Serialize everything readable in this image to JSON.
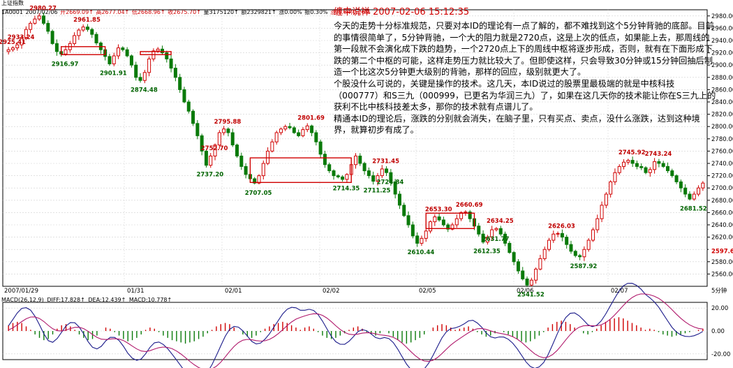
{
  "header": {
    "index_name": "上证指数",
    "quote": {
      "code": "1A0001",
      "date": "2007/02/06",
      "open": "开2669.09↑",
      "high": "高2677.04↑",
      "low": "低2668.96↑",
      "close": "收2675.70↑",
      "volume": "量3175120↑",
      "amount": "额2329821↑",
      "change_pct": "涨0.00%",
      "amplitude": "振0.30%",
      "rise": "涨(6.84)0.26%"
    }
  },
  "note": {
    "title": "缠中说禅 2007-02-06 15:12:35",
    "paragraphs": [
      "今天的走势十分标准规范，只要对本ID的理论有一点了解的，都不难找到这个5分钟背驰的底部。目前的事情很简单了，5分钟背驰，一个大的阻力就是2720点，这是上次的低点，如果能上去，那周线的第一段就不会演化成下跌的趋势，一个2720点上下的周线中枢将逐步形成，否则，就有在下面形成下跌的第二个中枢的可能，这样走势压力就比较大了。但即使这样，只会导致30分钟或15分钟回抽后制造一个比这次5分钟更大级别的背驰，那样的回应，级别就更大了。",
      "个股没什么可说的，关键是操作的技术。这几天，本ID说过的股票里最极端的就是中核科技（000777）和S三九（000999，已更名为华润三九）了，如果在这几天你的技术能让你在S三九上的获利不比中核科技差太多，那你的技术就有点谱儿了。",
      "精通本ID的理论后，涨跌的分别就会消失，在脑子里，只有买点、卖点，没什么涨跌，达到这种境界，就算初步有成了。"
    ]
  },
  "macd": {
    "params": "MACD(26,12,9)",
    "diff": "DIFF:17.828↑",
    "dea": "DEA:12.439↑",
    "macd": "MACD:10.778↑"
  },
  "chart_data": {
    "type": "candlestick",
    "ylim": [
      2540,
      2990
    ],
    "y_ticks": [
      "2560.00",
      "2580.00",
      "2600.00",
      "2620.00",
      "2640.00",
      "2660.00",
      "2680.00",
      "2700.00",
      "2720.00",
      "2740.00",
      "2760.00",
      "2780.00",
      "2800.00",
      "2820.00",
      "2840.00",
      "2860.00",
      "2880.00",
      "2900.00",
      "2920.00",
      "2940.00",
      "2960.00",
      "2980.00"
    ],
    "current_price_label": "2597.6",
    "x_labels": [
      "2007/01/29",
      "01/31",
      "02/01",
      "02/02",
      "02/05",
      "02/06",
      "02/07"
    ],
    "period_label": "5分钟",
    "path": [
      2925,
      2928,
      2933,
      2945,
      2958,
      2968,
      2975,
      2980,
      2968,
      2955,
      2935,
      2922,
      2918,
      2925,
      2935,
      2948,
      2957,
      2962,
      2958,
      2950,
      2936,
      2925,
      2914,
      2902,
      2915,
      2928,
      2925,
      2915,
      2900,
      2880,
      2875,
      2888,
      2910,
      2923,
      2926,
      2920,
      2910,
      2895,
      2880,
      2860,
      2840,
      2825,
      2805,
      2785,
      2760,
      2737,
      2752,
      2770,
      2790,
      2796,
      2790,
      2770,
      2752,
      2735,
      2722,
      2715,
      2708,
      2720,
      2740,
      2760,
      2775,
      2790,
      2796,
      2800,
      2798,
      2790,
      2785,
      2795,
      2801,
      2790,
      2775,
      2755,
      2738,
      2728,
      2720,
      2718,
      2714,
      2722,
      2738,
      2752,
      2740,
      2728,
      2720,
      2711,
      2720,
      2731,
      2725,
      2710,
      2690,
      2672,
      2655,
      2640,
      2622,
      2610,
      2618,
      2630,
      2645,
      2653,
      2648,
      2640,
      2633,
      2640,
      2650,
      2660,
      2661,
      2650,
      2638,
      2625,
      2612,
      2620,
      2632,
      2634,
      2625,
      2610,
      2595,
      2580,
      2565,
      2552,
      2542,
      2550,
      2568,
      2585,
      2600,
      2615,
      2625,
      2626,
      2620,
      2608,
      2597,
      2590,
      2588,
      2600,
      2615,
      2632,
      2650,
      2672,
      2690,
      2710,
      2725,
      2735,
      2742,
      2745,
      2740,
      2735,
      2733,
      2725,
      2730,
      2743,
      2740,
      2735,
      2728,
      2720,
      2710,
      2700,
      2690,
      2682,
      2690,
      2700,
      2708
    ],
    "extremes": [
      {
        "label": "2980.27",
        "type": "high"
      },
      {
        "label": "2961.85",
        "type": "high"
      },
      {
        "label": "2916.97",
        "type": "low"
      },
      {
        "label": "2933.24",
        "type": "high"
      },
      {
        "label": "2901.91",
        "type": "low"
      },
      {
        "label": "2925.41",
        "type": "high"
      },
      {
        "label": "2874.48",
        "type": "low"
      },
      {
        "label": "2795.88",
        "type": "high"
      },
      {
        "label": "2737.20",
        "type": "low"
      },
      {
        "label": "2801.69",
        "type": "high"
      },
      {
        "label": "2707.05",
        "type": "low"
      },
      {
        "label": "2752.70",
        "type": "high"
      },
      {
        "label": "2714.35",
        "type": "low"
      },
      {
        "label": "2731.45",
        "type": "high"
      },
      {
        "label": "2711.25",
        "type": "low"
      },
      {
        "label": "2653.30",
        "type": "high"
      },
      {
        "label": "2660.69",
        "type": "high"
      },
      {
        "label": "2631.77",
        "type": "low"
      },
      {
        "label": "2610.44",
        "type": "low"
      },
      {
        "label": "2634.25",
        "type": "high"
      },
      {
        "label": "2612.35",
        "type": "low"
      },
      {
        "label": "2626.03",
        "type": "high"
      },
      {
        "label": "2587.92",
        "type": "low"
      },
      {
        "label": "2541.52",
        "type": "low"
      },
      {
        "label": "2745.92",
        "type": "high"
      },
      {
        "label": "2743.24",
        "type": "high"
      },
      {
        "label": "2724.84",
        "type": "low"
      },
      {
        "label": "2681.52",
        "type": "low"
      }
    ],
    "hub_boxes": [
      {
        "top": 2930,
        "bottom": 2917
      },
      {
        "top": 2922,
        "bottom": 2917
      },
      {
        "top": 2749,
        "bottom": 2709
      },
      {
        "top": 2659,
        "bottom": 2634
      }
    ],
    "macd": {
      "ylim": [
        -25,
        25
      ],
      "ticks": [
        "20.00",
        "0.00",
        "-20.00"
      ],
      "histogram": [
        5,
        7,
        8,
        7,
        4,
        1,
        -3,
        -6,
        -8,
        -7,
        -3,
        2,
        5,
        6,
        4,
        1,
        -3,
        -6,
        -8,
        -7,
        -4,
        0,
        3,
        2,
        -1,
        -4,
        -7,
        -9,
        -8,
        -6,
        -3,
        1,
        3,
        2,
        -1,
        -4,
        -6,
        -8,
        -9,
        -10,
        -11,
        -10,
        -9,
        -7,
        -5,
        -2,
        1,
        4,
        6,
        7,
        6,
        3,
        0,
        -3,
        -5,
        -6,
        -4,
        -1,
        2,
        4,
        6,
        7,
        8,
        7,
        5,
        3,
        1,
        3,
        4,
        2,
        -1,
        -4,
        -6,
        -7,
        -6,
        -4,
        -2,
        1,
        3,
        4,
        2,
        -1,
        -3,
        -4,
        -2,
        0,
        -2,
        -5,
        -8,
        -10,
        -11,
        -10,
        -8,
        -6,
        -3,
        0,
        3,
        5,
        6,
        5,
        3,
        1,
        2,
        3,
        4,
        2,
        -1,
        -3,
        -5,
        -4,
        -2,
        0,
        -1,
        -3,
        -5,
        -7,
        -9,
        -10,
        -9,
        -7,
        -4,
        -1,
        3,
        6,
        8,
        9,
        8,
        6,
        3,
        0,
        -2,
        -3,
        -1,
        2,
        5,
        8,
        10,
        11,
        12,
        11,
        9,
        7,
        5,
        3,
        1,
        2,
        1,
        -1,
        -3,
        -4,
        -5,
        -4,
        -3,
        -2,
        -1,
        0,
        1,
        2
      ]
    }
  }
}
